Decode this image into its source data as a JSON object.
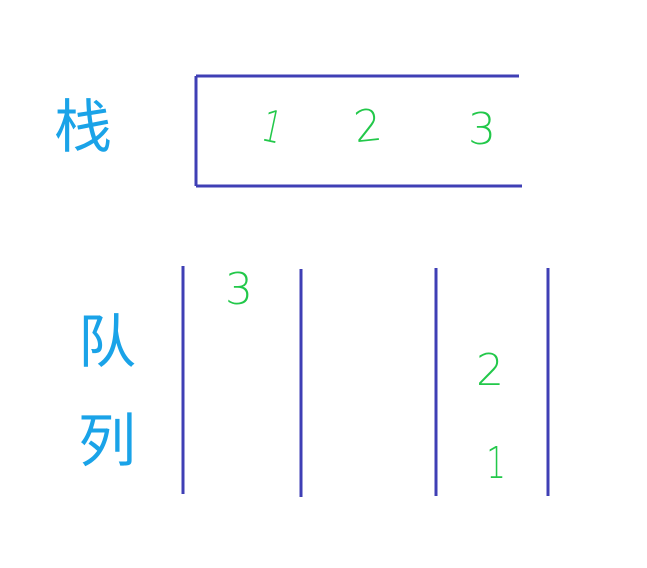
{
  "colors": {
    "label": "#1aa3e8",
    "number": "#22c84a",
    "line": "#3f3fb5",
    "background": "#ffffff"
  },
  "stack": {
    "label": "栈",
    "items": [
      "1",
      "2",
      "3"
    ]
  },
  "queue": {
    "label_top": "队",
    "label_bottom": "列",
    "left_item": "3",
    "right_items": [
      "2",
      "1"
    ]
  }
}
